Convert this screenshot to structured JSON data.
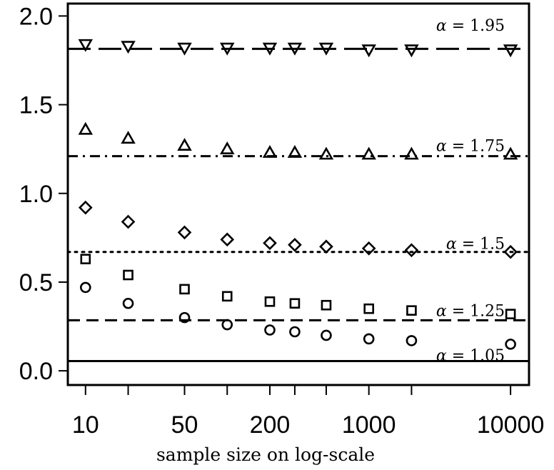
{
  "chart_data": {
    "type": "scatter",
    "x_scale": "log",
    "xlabel": "sample size on log-scale",
    "ylabel": "",
    "title": "",
    "xlim": [
      7.5,
      13500
    ],
    "ylim": [
      -0.08,
      2.07
    ],
    "x": [
      10,
      20,
      50,
      100,
      200,
      300,
      500,
      1000,
      2000,
      10000
    ],
    "x_ticks": [
      10,
      20,
      50,
      100,
      200,
      300,
      500,
      1000,
      2000,
      10000
    ],
    "x_tick_labels": [
      "10",
      "50",
      "200",
      "1000",
      "10000"
    ],
    "x_tick_labels_at": [
      10,
      50,
      200,
      1000,
      10000
    ],
    "y_ticks": [
      0.0,
      0.5,
      1.0,
      1.5,
      2.0
    ],
    "y_tick_labels": [
      "0.0",
      "0.5",
      "1.0",
      "1.5",
      "2.0"
    ],
    "grid": false,
    "legend": "none",
    "series": [
      {
        "alpha": "1.05",
        "marker": "circle",
        "line_style": "solid",
        "reference_value": 0.055,
        "values": [
          0.47,
          0.38,
          0.3,
          0.26,
          0.23,
          0.22,
          0.2,
          0.18,
          0.17,
          0.15
        ]
      },
      {
        "alpha": "1.25",
        "marker": "square",
        "line_style": "dashed",
        "reference_value": 0.285,
        "values": [
          0.63,
          0.54,
          0.46,
          0.42,
          0.39,
          0.38,
          0.37,
          0.35,
          0.34,
          0.32
        ]
      },
      {
        "alpha": "1.5",
        "marker": "diamond",
        "line_style": "dotted",
        "reference_value": 0.67,
        "values": [
          0.92,
          0.84,
          0.78,
          0.74,
          0.72,
          0.71,
          0.7,
          0.69,
          0.68,
          0.67
        ]
      },
      {
        "alpha": "1.75",
        "marker": "triangle-up",
        "line_style": "dashdot",
        "reference_value": 1.21,
        "values": [
          1.36,
          1.31,
          1.27,
          1.25,
          1.23,
          1.23,
          1.22,
          1.22,
          1.22,
          1.22
        ]
      },
      {
        "alpha": "1.95",
        "marker": "triangle-down",
        "line_style": "longdash",
        "reference_value": 1.815,
        "values": [
          1.84,
          1.83,
          1.82,
          1.82,
          1.82,
          1.82,
          1.82,
          1.81,
          1.81,
          1.81
        ]
      }
    ],
    "annotations": [
      {
        "prefix": "α",
        "text": " = 1.95",
        "at_x": 10000,
        "at_y": 1.95
      },
      {
        "prefix": "α",
        "text": " = 1.75",
        "at_x": 10000,
        "at_y": 1.27
      },
      {
        "prefix": "α",
        "text": " = 1.5",
        "at_x": 10000,
        "at_y": 0.72
      },
      {
        "prefix": "α",
        "text": " = 1.25",
        "at_x": 10000,
        "at_y": 0.34
      },
      {
        "prefix": "α",
        "text": " = 1.05",
        "at_x": 10000,
        "at_y": 0.09
      }
    ],
    "colors": {
      "ink": "#000000",
      "background": "#ffffff"
    }
  }
}
